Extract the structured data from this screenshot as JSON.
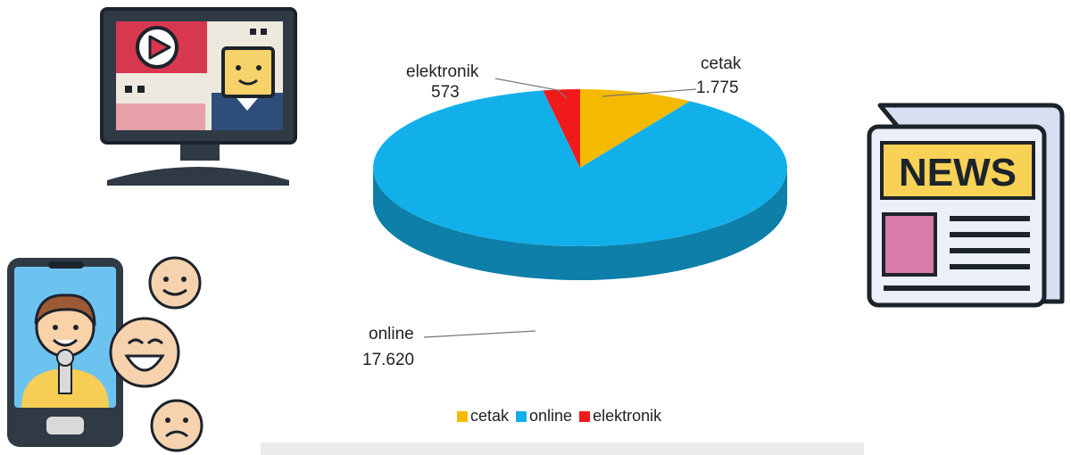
{
  "chart_data": {
    "type": "pie",
    "title": "",
    "three_d": true,
    "categories": [
      "cetak",
      "online",
      "elektronik"
    ],
    "values": [
      1775,
      17620,
      573
    ],
    "value_labels": [
      "1.775",
      "17.620",
      "573"
    ],
    "colors": [
      "#F5BA00",
      "#12B0EA",
      "#F01A1A"
    ],
    "legend": {
      "position": "bottom",
      "items": [
        {
          "label": "cetak",
          "color": "#F5BA00"
        },
        {
          "label": "online",
          "color": "#12B0EA"
        },
        {
          "label": "elektronik",
          "color": "#F01A1A"
        }
      ]
    }
  },
  "illustrations": {
    "tv": {
      "icon": "tv-broadcast-icon"
    },
    "streamer": {
      "icon": "smartphone-presenter-icon"
    },
    "newspaper": {
      "icon": "newspaper-icon",
      "text": "NEWS"
    }
  }
}
